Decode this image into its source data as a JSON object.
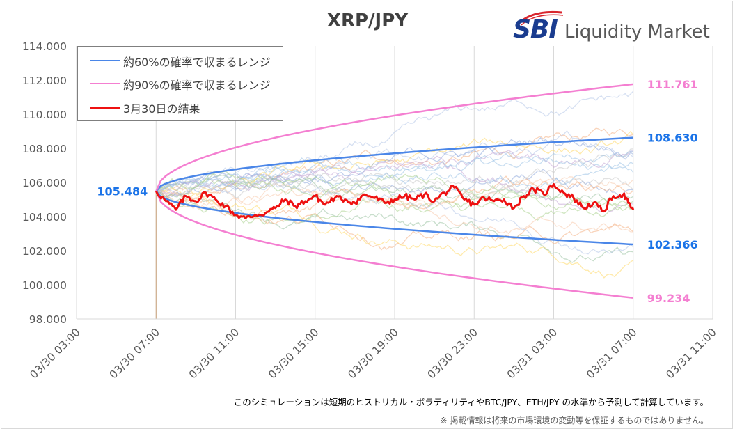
{
  "brand": {
    "logo_mark": "SBI",
    "logo_text": "Liquidity Market",
    "colors": {
      "logo_blue": "#1a3c8f",
      "logo_red": "#d9262e"
    }
  },
  "footnotes": {
    "line1": "このシミュレーションは短期のヒストリカル・ボラティリティやBTC/JPY、ETH/JPY の水準から予測して計算しています。",
    "line2": "※ 掲載情報は将来の市場環境の変動等を保証するものではありません。"
  },
  "chart_data": {
    "type": "line",
    "title": "XRP/JPY",
    "xlabel": "",
    "ylabel": "",
    "y_ticks": [
      "98.000",
      "100.000",
      "102.000",
      "104.000",
      "106.000",
      "108.000",
      "110.000",
      "112.000",
      "114.000"
    ],
    "ylim": [
      98,
      114
    ],
    "x_ticks": [
      "03/30 03:00",
      "03/30 07:00",
      "03/30 11:00",
      "03/30 15:00",
      "03/30 19:00",
      "03/30 23:00",
      "03/31 03:00",
      "03/31 07:00",
      "03/31 11:00"
    ],
    "xlim": [
      "03/30 03:00",
      "03/31 11:00"
    ],
    "x_unit_hours_from_start": "03/30 03:00",
    "grid": {
      "vertical": true,
      "horizontal": false
    },
    "legend_position": "top-left",
    "start": {
      "time": "03/30 07:00",
      "value": 105.484,
      "label": "105.484"
    },
    "series": [
      {
        "name": "約60%の確率で収まるレンジ",
        "color": "#4a86e8",
        "bands": {
          "upper": {
            "end_value": 108.63,
            "label": "108.630"
          },
          "lower": {
            "end_value": 102.366,
            "label": "102.366"
          }
        }
      },
      {
        "name": "約90%の確率で収まるレンジ",
        "color": "#f47fd1",
        "bands": {
          "upper": {
            "end_value": 111.761,
            "label": "111.761"
          },
          "lower": {
            "end_value": 99.234,
            "label": "99.234"
          }
        }
      },
      {
        "name": "3月30日の結果",
        "color": "#ee1111",
        "points": [
          [
            "03/30 07:00",
            105.48
          ],
          [
            "03/30 07:30",
            104.9
          ],
          [
            "03/30 08:00",
            104.4
          ],
          [
            "03/30 08:30",
            105.2
          ],
          [
            "03/30 09:00",
            104.9
          ],
          [
            "03/30 09:30",
            105.4
          ],
          [
            "03/30 10:00",
            105.0
          ],
          [
            "03/30 10:30",
            104.6
          ],
          [
            "03/30 11:00",
            104.1
          ],
          [
            "03/30 11:30",
            103.9
          ],
          [
            "03/30 12:00",
            104.1
          ],
          [
            "03/30 12:30",
            104.2
          ],
          [
            "03/30 13:00",
            104.5
          ],
          [
            "03/30 13:30",
            105.0
          ],
          [
            "03/30 14:00",
            104.6
          ],
          [
            "03/30 14:30",
            104.9
          ],
          [
            "03/30 15:00",
            105.2
          ],
          [
            "03/30 15:30",
            104.7
          ],
          [
            "03/30 16:00",
            105.1
          ],
          [
            "03/30 16:30",
            105.0
          ],
          [
            "03/30 17:00",
            104.8
          ],
          [
            "03/30 17:30",
            105.3
          ],
          [
            "03/30 18:00",
            105.1
          ],
          [
            "03/30 18:30",
            104.8
          ],
          [
            "03/30 19:00",
            105.0
          ],
          [
            "03/30 19:30",
            105.2
          ],
          [
            "03/30 20:00",
            105.0
          ],
          [
            "03/30 20:30",
            105.3
          ],
          [
            "03/30 21:00",
            104.9
          ],
          [
            "03/30 21:30",
            105.4
          ],
          [
            "03/30 22:00",
            105.7
          ],
          [
            "03/30 22:30",
            105.0
          ],
          [
            "03/30 23:00",
            104.7
          ],
          [
            "03/30 23:30",
            105.1
          ],
          [
            "03/31 00:00",
            104.9
          ],
          [
            "03/31 00:30",
            105.0
          ],
          [
            "03/31 01:00",
            104.5
          ],
          [
            "03/31 01:30",
            105.2
          ],
          [
            "03/31 02:00",
            105.6
          ],
          [
            "03/31 02:30",
            105.3
          ],
          [
            "03/31 03:00",
            105.9
          ],
          [
            "03/31 03:30",
            105.4
          ],
          [
            "03/31 04:00",
            105.1
          ],
          [
            "03/31 04:30",
            104.5
          ],
          [
            "03/31 05:00",
            104.8
          ],
          [
            "03/31 05:30",
            104.3
          ],
          [
            "03/31 06:00",
            105.2
          ],
          [
            "03/31 06:30",
            105.3
          ],
          [
            "03/31 06:45",
            104.8
          ],
          [
            "03/31 07:00",
            104.4
          ]
        ]
      }
    ],
    "simulation_paths_color_note": "faint multicolor simulated paths (unlabeled)"
  }
}
